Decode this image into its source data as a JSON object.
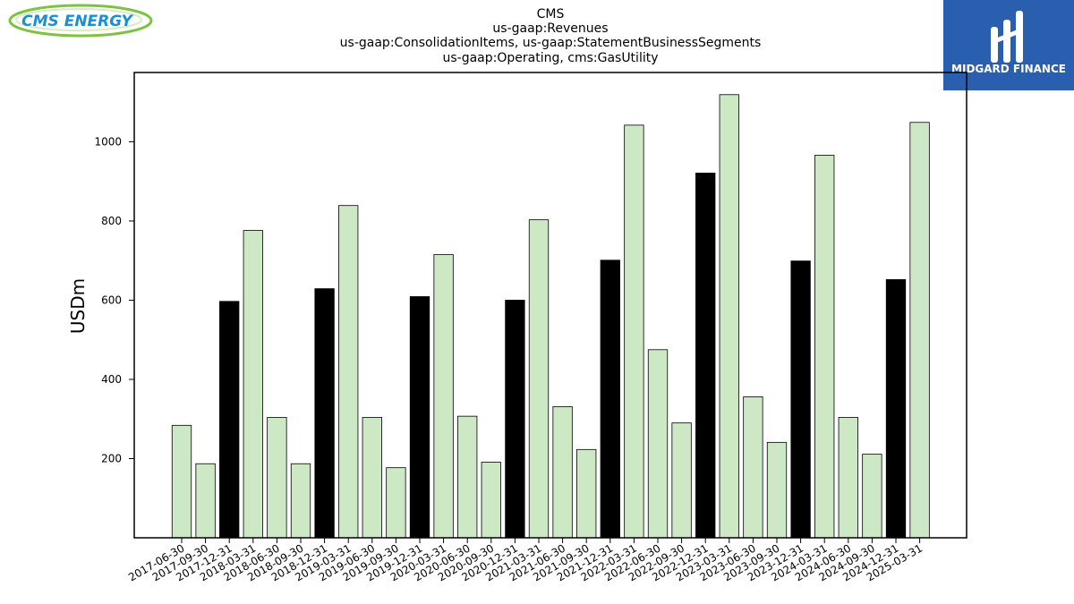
{
  "logos": {
    "left": {
      "text": "CMS ENERGY"
    },
    "right": {
      "text": "MIDGARD FINANCE"
    }
  },
  "chart_data": {
    "type": "bar",
    "title_lines": [
      "CMS",
      "us-gaap:Revenues",
      "us-gaap:ConsolidationItems, us-gaap:StatementBusinessSegments",
      "us-gaap:Operating, cms:GasUtility"
    ],
    "xlabel": "",
    "ylabel": "USDm",
    "ylim": [
      0,
      1175
    ],
    "yticks": [
      200,
      400,
      600,
      800,
      1000
    ],
    "grid": false,
    "colors": {
      "quarter": "#cce8c4",
      "year_end": "#000000",
      "edge": "#000000"
    },
    "categories": [
      "2017-06-30",
      "2017-09-30",
      "2017-12-31",
      "2018-03-31",
      "2018-06-30",
      "2018-09-30",
      "2018-12-31",
      "2019-03-31",
      "2019-06-30",
      "2019-09-30",
      "2019-12-31",
      "2020-03-31",
      "2020-06-30",
      "2020-09-30",
      "2020-12-31",
      "2021-03-31",
      "2021-06-30",
      "2021-09-30",
      "2021-12-31",
      "2022-03-31",
      "2022-06-30",
      "2022-09-30",
      "2022-12-31",
      "2023-03-31",
      "2023-06-30",
      "2023-09-30",
      "2023-12-31",
      "2024-03-31",
      "2024-06-30",
      "2024-09-30",
      "2024-12-31",
      "2025-03-31"
    ],
    "values": [
      284,
      187,
      597,
      776,
      304,
      187,
      629,
      839,
      304,
      177,
      609,
      715,
      307,
      191,
      600,
      803,
      331,
      223,
      701,
      1042,
      475,
      290,
      921,
      1119,
      356,
      241,
      699,
      966,
      304,
      211,
      652,
      1049
    ],
    "highlight": [
      false,
      false,
      true,
      false,
      false,
      false,
      true,
      false,
      false,
      false,
      true,
      false,
      false,
      false,
      true,
      false,
      false,
      false,
      true,
      false,
      false,
      false,
      true,
      false,
      false,
      false,
      true,
      false,
      false,
      false,
      true,
      false
    ]
  }
}
